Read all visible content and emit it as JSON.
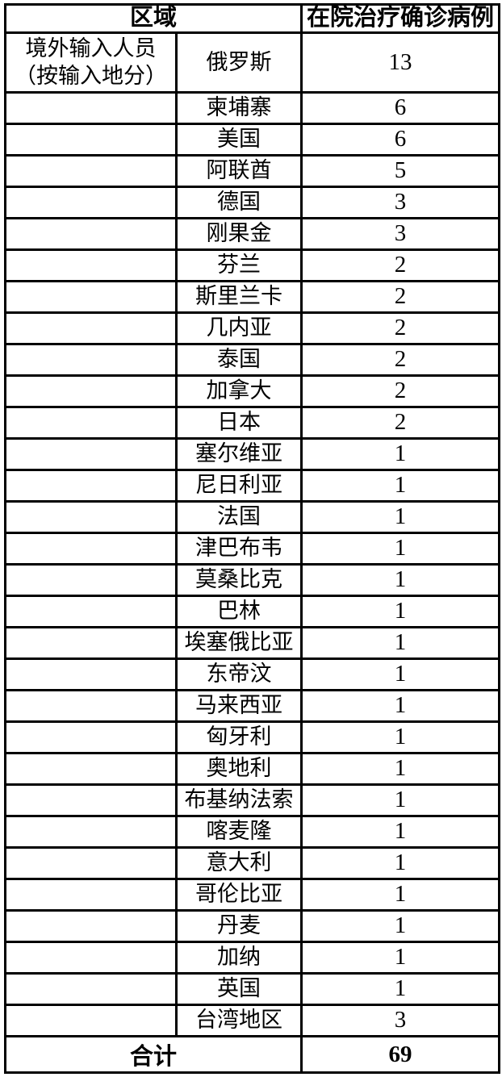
{
  "table": {
    "header": {
      "region_label": "区域",
      "cases_label": "在院治疗确诊病例"
    },
    "group_label_line1": "境外输入人员",
    "group_label_line2": "（按输入地分）",
    "rows": [
      {
        "place": "俄罗斯",
        "count": "13"
      },
      {
        "place": "柬埔寨",
        "count": "6"
      },
      {
        "place": "美国",
        "count": "6"
      },
      {
        "place": "阿联酋",
        "count": "5"
      },
      {
        "place": "德国",
        "count": "3"
      },
      {
        "place": "刚果金",
        "count": "3"
      },
      {
        "place": "芬兰",
        "count": "2"
      },
      {
        "place": "斯里兰卡",
        "count": "2"
      },
      {
        "place": "几内亚",
        "count": "2"
      },
      {
        "place": "泰国",
        "count": "2"
      },
      {
        "place": "加拿大",
        "count": "2"
      },
      {
        "place": "日本",
        "count": "2"
      },
      {
        "place": "塞尔维亚",
        "count": "1"
      },
      {
        "place": "尼日利亚",
        "count": "1"
      },
      {
        "place": "法国",
        "count": "1"
      },
      {
        "place": "津巴布韦",
        "count": "1"
      },
      {
        "place": "莫桑比克",
        "count": "1"
      },
      {
        "place": "巴林",
        "count": "1"
      },
      {
        "place": "埃塞俄比亚",
        "count": "1"
      },
      {
        "place": "东帝汶",
        "count": "1"
      },
      {
        "place": "马来西亚",
        "count": "1"
      },
      {
        "place": "匈牙利",
        "count": "1"
      },
      {
        "place": "奥地利",
        "count": "1"
      },
      {
        "place": "布基纳法索",
        "count": "1"
      },
      {
        "place": "喀麦隆",
        "count": "1"
      },
      {
        "place": "意大利",
        "count": "1"
      },
      {
        "place": "哥伦比亚",
        "count": "1"
      },
      {
        "place": "丹麦",
        "count": "1"
      },
      {
        "place": "加纳",
        "count": "1"
      },
      {
        "place": "英国",
        "count": "1"
      },
      {
        "place": "台湾地区",
        "count": "3"
      }
    ],
    "total_label": "合计",
    "total_value": "69"
  }
}
